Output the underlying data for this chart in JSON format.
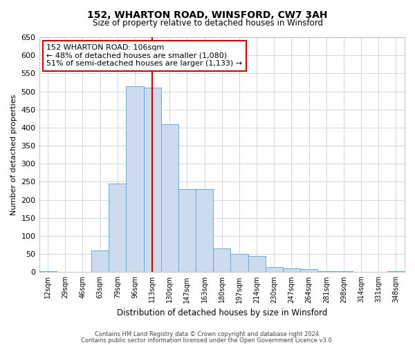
{
  "title": "152, WHARTON ROAD, WINSFORD, CW7 3AH",
  "subtitle": "Size of property relative to detached houses in Winsford",
  "xlabel": "Distribution of detached houses by size in Winsford",
  "ylabel": "Number of detached properties",
  "bar_labels": [
    "12sqm",
    "29sqm",
    "46sqm",
    "63sqm",
    "79sqm",
    "96sqm",
    "113sqm",
    "130sqm",
    "147sqm",
    "163sqm",
    "180sqm",
    "197sqm",
    "214sqm",
    "230sqm",
    "247sqm",
    "264sqm",
    "281sqm",
    "298sqm",
    "314sqm",
    "331sqm",
    "348sqm"
  ],
  "bar_heights": [
    2,
    0,
    0,
    60,
    245,
    515,
    510,
    410,
    230,
    230,
    65,
    50,
    45,
    15,
    10,
    8,
    3,
    2,
    0,
    0,
    3
  ],
  "bar_color": "#ccdcee",
  "bar_edge_color": "#6aaad4",
  "ylim": [
    0,
    650
  ],
  "yticks": [
    0,
    50,
    100,
    150,
    200,
    250,
    300,
    350,
    400,
    450,
    500,
    550,
    600,
    650
  ],
  "property_line_x": 6.0,
  "property_line_color": "#cc0000",
  "annotation_line1": "152 WHARTON ROAD: 106sqm",
  "annotation_line2": "← 48% of detached houses are smaller (1,080)",
  "annotation_line3": "51% of semi-detached houses are larger (1,133) →",
  "annotation_box_color": "#ffffff",
  "annotation_box_edge": "#cc0000",
  "footer1": "Contains HM Land Registry data © Crown copyright and database right 2024.",
  "footer2": "Contains public sector information licensed under the Open Government Licence v3.0.",
  "background_color": "#ffffff",
  "grid_color": "#c8d0d8"
}
